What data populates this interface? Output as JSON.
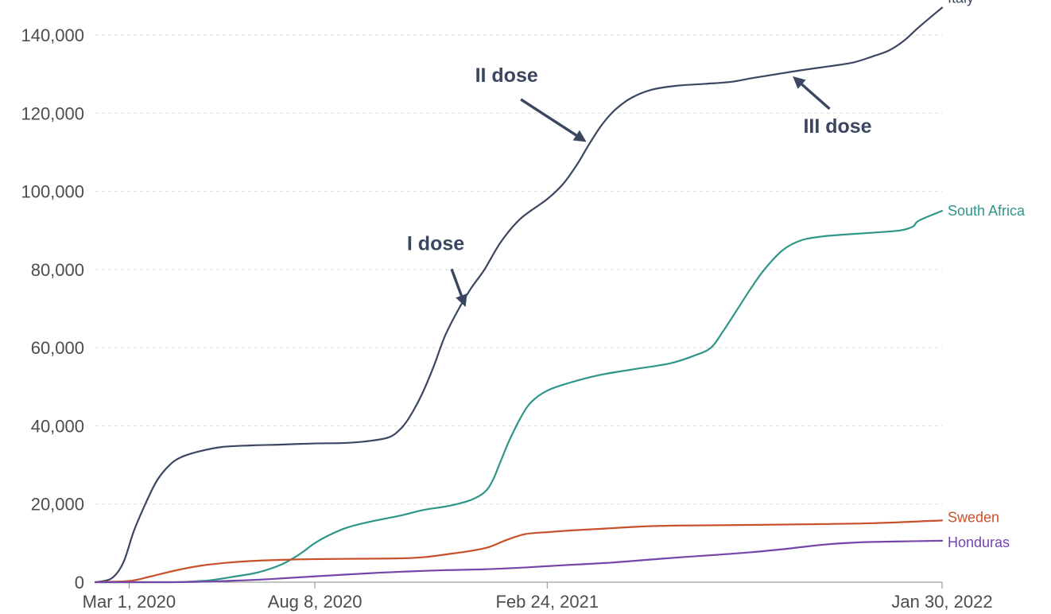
{
  "chart_data": {
    "type": "line",
    "title": "",
    "xlabel": "",
    "ylabel": "",
    "x_domain": [
      "2020-02-01",
      "2022-01-30"
    ],
    "ylim": [
      0,
      140000
    ],
    "y_ticks": [
      0,
      20000,
      40000,
      60000,
      80000,
      100000,
      120000,
      140000
    ],
    "y_tick_labels": [
      "0",
      "20,000",
      "40,000",
      "60,000",
      "80,000",
      "100,000",
      "120,000",
      "140,000"
    ],
    "x_ticks": [
      {
        "date": "2020-03-01",
        "label": "Mar 1, 2020"
      },
      {
        "date": "2020-08-08",
        "label": "Aug 8, 2020"
      },
      {
        "date": "2021-02-24",
        "label": "Feb 24, 2021"
      },
      {
        "date": "2022-01-30",
        "label": "Jan 30, 2022"
      }
    ],
    "grid": true,
    "legend": "inline labels at line ends",
    "series": [
      {
        "name": "Italy",
        "color": "#3b4760",
        "points": [
          [
            "2020-02-01",
            0
          ],
          [
            "2020-02-15",
            1000
          ],
          [
            "2020-02-25",
            5000
          ],
          [
            "2020-03-05",
            13000
          ],
          [
            "2020-03-15",
            20000
          ],
          [
            "2020-03-25",
            26000
          ],
          [
            "2020-04-05",
            30000
          ],
          [
            "2020-04-15",
            32000
          ],
          [
            "2020-05-01",
            33500
          ],
          [
            "2020-05-20",
            34600
          ],
          [
            "2020-06-15",
            35000
          ],
          [
            "2020-07-10",
            35200
          ],
          [
            "2020-08-08",
            35500
          ],
          [
            "2020-09-01",
            35600
          ],
          [
            "2020-09-20",
            36000
          ],
          [
            "2020-10-10",
            37000
          ],
          [
            "2020-10-20",
            39000
          ],
          [
            "2020-10-28",
            42000
          ],
          [
            "2020-11-08",
            48000
          ],
          [
            "2020-11-18",
            55000
          ],
          [
            "2020-11-28",
            63000
          ],
          [
            "2020-12-10",
            70000
          ],
          [
            "2020-12-20",
            75000
          ],
          [
            "2021-01-01",
            80000
          ],
          [
            "2021-01-15",
            87000
          ],
          [
            "2021-02-01",
            93000
          ],
          [
            "2021-02-24",
            98000
          ],
          [
            "2021-03-10",
            102000
          ],
          [
            "2021-03-22",
            107000
          ],
          [
            "2021-04-01",
            112000
          ],
          [
            "2021-04-12",
            117000
          ],
          [
            "2021-04-24",
            121000
          ],
          [
            "2021-05-08",
            124000
          ],
          [
            "2021-05-25",
            126000
          ],
          [
            "2021-06-15",
            127000
          ],
          [
            "2021-07-10",
            127500
          ],
          [
            "2021-08-01",
            128000
          ],
          [
            "2021-08-20",
            129000
          ],
          [
            "2021-09-10",
            130000
          ],
          [
            "2021-10-01",
            131000
          ],
          [
            "2021-10-25",
            132000
          ],
          [
            "2021-11-15",
            133000
          ],
          [
            "2021-12-01",
            134500
          ],
          [
            "2021-12-15",
            136000
          ],
          [
            "2021-12-28",
            138500
          ],
          [
            "2022-01-10",
            142000
          ],
          [
            "2022-01-30",
            147000
          ]
        ]
      },
      {
        "name": "South Africa",
        "color": "#2e9688",
        "points": [
          [
            "2020-02-01",
            0
          ],
          [
            "2020-04-01",
            0
          ],
          [
            "2020-04-20",
            100
          ],
          [
            "2020-05-10",
            500
          ],
          [
            "2020-06-01",
            1500
          ],
          [
            "2020-06-20",
            2500
          ],
          [
            "2020-07-10",
            4500
          ],
          [
            "2020-07-25",
            7000
          ],
          [
            "2020-08-08",
            10000
          ],
          [
            "2020-08-20",
            12000
          ],
          [
            "2020-09-05",
            14000
          ],
          [
            "2020-09-25",
            15500
          ],
          [
            "2020-10-20",
            17000
          ],
          [
            "2020-11-10",
            18500
          ],
          [
            "2020-12-01",
            19500
          ],
          [
            "2020-12-20",
            21000
          ],
          [
            "2021-01-01",
            23000
          ],
          [
            "2021-01-08",
            26000
          ],
          [
            "2021-01-15",
            31000
          ],
          [
            "2021-01-22",
            36000
          ],
          [
            "2021-02-01",
            42000
          ],
          [
            "2021-02-10",
            46000
          ],
          [
            "2021-02-24",
            49000
          ],
          [
            "2021-03-15",
            51000
          ],
          [
            "2021-04-10",
            53000
          ],
          [
            "2021-05-10",
            54500
          ],
          [
            "2021-06-10",
            56000
          ],
          [
            "2021-07-01",
            58000
          ],
          [
            "2021-07-15",
            60000
          ],
          [
            "2021-07-25",
            64000
          ],
          [
            "2021-08-05",
            69000
          ],
          [
            "2021-08-18",
            75000
          ],
          [
            "2021-08-30",
            80000
          ],
          [
            "2021-09-15",
            85000
          ],
          [
            "2021-10-01",
            87500
          ],
          [
            "2021-10-20",
            88500
          ],
          [
            "2021-11-10",
            89000
          ],
          [
            "2021-12-05",
            89500
          ],
          [
            "2021-12-25",
            90000
          ],
          [
            "2022-01-05",
            91000
          ],
          [
            "2022-01-10",
            92500
          ],
          [
            "2022-01-30",
            95000
          ]
        ]
      },
      {
        "name": "Sweden",
        "color": "#c8502a",
        "points": [
          [
            "2020-02-01",
            0
          ],
          [
            "2020-03-01",
            300
          ],
          [
            "2020-03-20",
            1500
          ],
          [
            "2020-04-10",
            3000
          ],
          [
            "2020-05-01",
            4200
          ],
          [
            "2020-05-25",
            5000
          ],
          [
            "2020-06-20",
            5500
          ],
          [
            "2020-07-20",
            5800
          ],
          [
            "2020-08-08",
            5900
          ],
          [
            "2020-09-15",
            6000
          ],
          [
            "2020-10-20",
            6100
          ],
          [
            "2020-11-10",
            6400
          ],
          [
            "2020-12-01",
            7200
          ],
          [
            "2020-12-20",
            8000
          ],
          [
            "2021-01-05",
            9000
          ],
          [
            "2021-01-20",
            10800
          ],
          [
            "2021-02-05",
            12300
          ],
          [
            "2021-02-24",
            12800
          ],
          [
            "2021-03-20",
            13300
          ],
          [
            "2021-04-20",
            13800
          ],
          [
            "2021-05-20",
            14300
          ],
          [
            "2021-06-20",
            14500
          ],
          [
            "2021-08-01",
            14600
          ],
          [
            "2021-10-01",
            14800
          ],
          [
            "2021-12-01",
            15100
          ],
          [
            "2022-01-30",
            15800
          ]
        ]
      },
      {
        "name": "Honduras",
        "color": "#7446a8",
        "points": [
          [
            "2020-02-01",
            0
          ],
          [
            "2020-04-01",
            0
          ],
          [
            "2020-05-01",
            100
          ],
          [
            "2020-06-01",
            400
          ],
          [
            "2020-07-01",
            800
          ],
          [
            "2020-08-08",
            1500
          ],
          [
            "2020-09-01",
            1900
          ],
          [
            "2020-10-01",
            2400
          ],
          [
            "2020-11-01",
            2800
          ],
          [
            "2020-12-01",
            3100
          ],
          [
            "2021-01-01",
            3300
          ],
          [
            "2021-02-01",
            3700
          ],
          [
            "2021-02-24",
            4100
          ],
          [
            "2021-03-20",
            4500
          ],
          [
            "2021-04-20",
            5000
          ],
          [
            "2021-05-20",
            5700
          ],
          [
            "2021-06-20",
            6400
          ],
          [
            "2021-07-20",
            7000
          ],
          [
            "2021-08-20",
            7700
          ],
          [
            "2021-09-20",
            8600
          ],
          [
            "2021-10-20",
            9600
          ],
          [
            "2021-11-20",
            10200
          ],
          [
            "2021-12-20",
            10400
          ],
          [
            "2022-01-30",
            10600
          ]
        ]
      }
    ],
    "annotations": [
      {
        "text": "I dose",
        "date": "2020-11-20",
        "value": 85000,
        "arrow_to_date": "2020-12-15",
        "arrow_to_value": 71000
      },
      {
        "text": "II dose",
        "date": "2021-01-20",
        "value": 128000,
        "arrow_to_date": "2021-03-28",
        "arrow_to_value": 113000
      },
      {
        "text": "III dose",
        "date": "2021-11-01",
        "value": 115000,
        "arrow_to_date": "2021-09-25",
        "arrow_to_value": 129000
      }
    ]
  }
}
